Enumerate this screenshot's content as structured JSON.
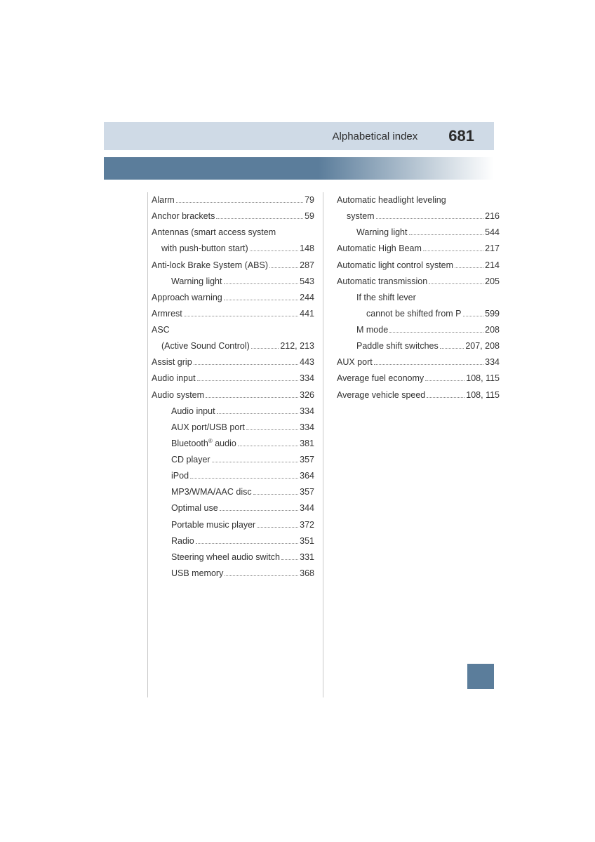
{
  "header": {
    "title": "Alphabetical index",
    "page_number": "681",
    "band_color": "#cfdae6",
    "gradient_start": "#5b7d9b",
    "gradient_end": "#ffffff"
  },
  "thumb_tab_color": "#5b7d9b",
  "left_column": [
    {
      "label": "Alarm",
      "page": "79",
      "indent": 0
    },
    {
      "label": "Anchor brackets",
      "page": "59",
      "indent": 0
    },
    {
      "label": "Antennas (smart access system",
      "page": "",
      "indent": 0,
      "nodots": true
    },
    {
      "label": "with push-button start)",
      "page": "148",
      "indent": 1
    },
    {
      "label": "Anti-lock Brake System (ABS)",
      "page": "287",
      "indent": 0
    },
    {
      "label": "Warning light",
      "page": "543",
      "indent": 2
    },
    {
      "label": "Approach warning",
      "page": "244",
      "indent": 0
    },
    {
      "label": "Armrest",
      "page": "441",
      "indent": 0
    },
    {
      "label": "ASC",
      "page": "",
      "indent": 0,
      "nodots": true
    },
    {
      "label": "(Active Sound Control)",
      "page": "212, 213",
      "indent": 1
    },
    {
      "label": "Assist grip",
      "page": "443",
      "indent": 0
    },
    {
      "label": "Audio input",
      "page": "334",
      "indent": 0
    },
    {
      "label": "Audio system",
      "page": "326",
      "indent": 0
    },
    {
      "label": "Audio input",
      "page": "334",
      "indent": 2
    },
    {
      "label": "AUX port/USB port",
      "page": "334",
      "indent": 2
    },
    {
      "label": "Bluetooth<sup>®</sup> audio",
      "page": "381",
      "indent": 2,
      "html": true
    },
    {
      "label": "CD player",
      "page": "357",
      "indent": 2
    },
    {
      "label": "iPod",
      "page": "364",
      "indent": 2
    },
    {
      "label": "MP3/WMA/AAC disc",
      "page": "357",
      "indent": 2
    },
    {
      "label": "Optimal use",
      "page": "344",
      "indent": 2
    },
    {
      "label": "Portable music player",
      "page": "372",
      "indent": 2
    },
    {
      "label": "Radio",
      "page": "351",
      "indent": 2
    },
    {
      "label": "Steering wheel audio switch",
      "page": "331",
      "indent": 2
    },
    {
      "label": "USB memory",
      "page": "368",
      "indent": 2
    }
  ],
  "right_column": [
    {
      "label": "Automatic headlight leveling",
      "page": "",
      "indent": 0,
      "nodots": true
    },
    {
      "label": "system",
      "page": "216",
      "indent": 1
    },
    {
      "label": "Warning light",
      "page": "544",
      "indent": 2
    },
    {
      "label": "Automatic High Beam",
      "page": "217",
      "indent": 0
    },
    {
      "label": "Automatic light control system",
      "page": "214",
      "indent": 0
    },
    {
      "label": "Automatic transmission",
      "page": "205",
      "indent": 0
    },
    {
      "label": "If the shift lever",
      "page": "",
      "indent": 2,
      "nodots": true
    },
    {
      "label": "cannot be shifted from P",
      "page": "599",
      "indent": 2,
      "extra_indent": 14
    },
    {
      "label": "M mode",
      "page": "208",
      "indent": 2
    },
    {
      "label": "Paddle shift switches",
      "page": "207, 208",
      "indent": 2
    },
    {
      "label": "AUX port",
      "page": "334",
      "indent": 0
    },
    {
      "label": "Average fuel economy",
      "page": "108, 115",
      "indent": 0
    },
    {
      "label": "Average vehicle speed",
      "page": "108, 115",
      "indent": 0
    }
  ]
}
